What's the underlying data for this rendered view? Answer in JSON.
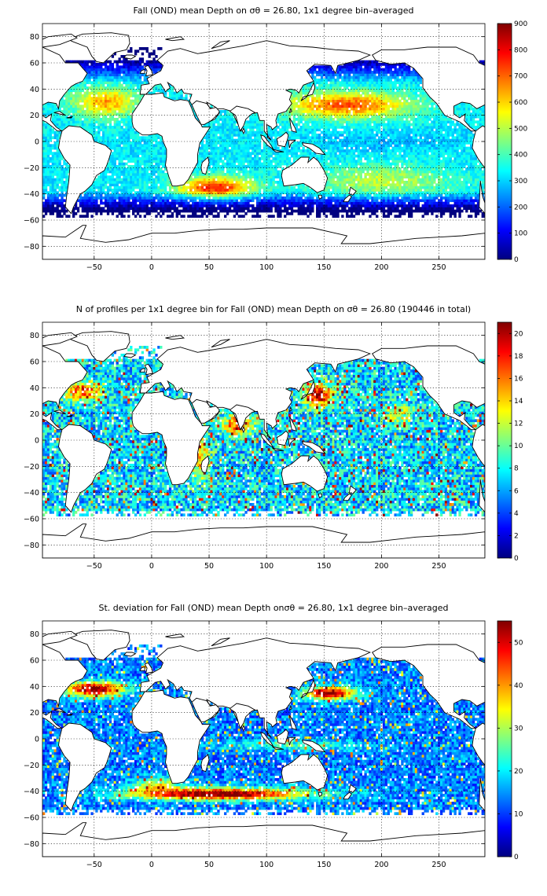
{
  "chart_data": [
    {
      "type": "heatmap",
      "title": "Fall (OND) mean Depth on σθ = 26.80, 1x1 degree bin–averaged",
      "xlim": [
        -95,
        290
      ],
      "ylim": [
        -90,
        90
      ],
      "xticks": [
        -50,
        0,
        50,
        100,
        150,
        200,
        250
      ],
      "yticks": [
        -80,
        -60,
        -40,
        -20,
        0,
        20,
        40,
        60,
        80
      ],
      "grid": true,
      "colorbar": {
        "position": "right",
        "range": [
          0,
          900
        ],
        "ticks": [
          0,
          100,
          200,
          300,
          400,
          500,
          600,
          700,
          800,
          900
        ]
      },
      "colormap": "jet",
      "field_features": [
        {
          "region": "North Atlantic subtropical gyre",
          "lon": -40,
          "lat": 30,
          "value": 660
        },
        {
          "region": "North Pacific subtropical gyre",
          "lon": 170,
          "lat": 28,
          "value": 720
        },
        {
          "region": "South Indian Ocean gyre",
          "lon": 60,
          "lat": -35,
          "value": 800
        },
        {
          "region": "Southern Ocean (near 55S)",
          "lon": 100,
          "lat": -55,
          "value": 100
        },
        {
          "region": "Equatorial Pacific",
          "lon": 200,
          "lat": 0,
          "value": 330
        },
        {
          "region": "Equatorial Atlantic",
          "lon": -20,
          "lat": 0,
          "value": 360
        }
      ]
    },
    {
      "type": "heatmap",
      "title": "N of profiles per 1x1 degree bin for Fall (OND) mean Depth on σθ = 26.80 (190446 in total)",
      "xlim": [
        -95,
        290
      ],
      "ylim": [
        -90,
        90
      ],
      "xticks": [
        -50,
        0,
        50,
        100,
        150,
        200,
        250
      ],
      "yticks": [
        -80,
        -60,
        -40,
        -20,
        0,
        20,
        40,
        60,
        80
      ],
      "grid": true,
      "colorbar": {
        "position": "right",
        "range": [
          0,
          21
        ],
        "ticks": [
          0,
          2,
          4,
          6,
          8,
          10,
          12,
          14,
          16,
          18,
          20
        ]
      },
      "colormap": "jet",
      "total_profiles": 190446,
      "field_features": [
        {
          "region": "Kuroshio / Japan",
          "lon": 145,
          "lat": 35,
          "value": 20
        },
        {
          "region": "Gulf Stream",
          "lon": -60,
          "lat": 38,
          "value": 17
        },
        {
          "region": "Arabian Sea / Bay of Bengal",
          "lon": 75,
          "lat": 12,
          "value": 17
        },
        {
          "region": "Open ocean interior",
          "lon": 200,
          "lat": -20,
          "value": 6
        }
      ]
    },
    {
      "type": "heatmap",
      "title": "St. deviation for Fall (OND) mean Depth onσθ = 26.80, 1x1 degree bin–averaged",
      "xlim": [
        -95,
        290
      ],
      "ylim": [
        -90,
        90
      ],
      "xticks": [
        -50,
        0,
        50,
        100,
        150,
        200,
        250
      ],
      "yticks": [
        -80,
        -60,
        -40,
        -20,
        0,
        20,
        40,
        60,
        80
      ],
      "grid": true,
      "colorbar": {
        "position": "right",
        "range": [
          0,
          55
        ],
        "ticks": [
          0,
          10,
          20,
          30,
          40,
          50
        ]
      },
      "colormap": "jet",
      "field_features": [
        {
          "region": "Antarctic Circumpolar Current",
          "lon": 60,
          "lat": -42,
          "value": 52
        },
        {
          "region": "Gulf Stream",
          "lon": -60,
          "lat": 38,
          "value": 50
        },
        {
          "region": "Kuroshio Extension",
          "lon": 150,
          "lat": 35,
          "value": 48
        },
        {
          "region": "Subtropical interior",
          "lon": 200,
          "lat": -15,
          "value": 12
        }
      ]
    }
  ]
}
